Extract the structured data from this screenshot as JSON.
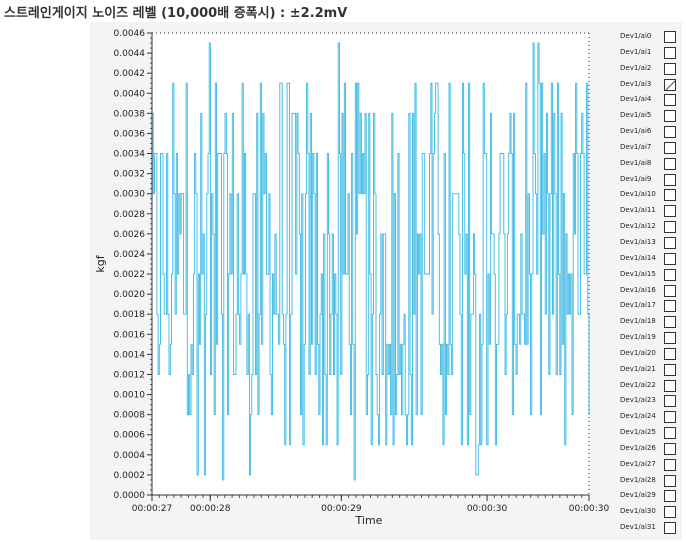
{
  "title": "스트레인게이지 노이즈 레벨 (10,000배 증폭시) : ±2.2mV",
  "chart_data": {
    "type": "line",
    "xlabel": "Time",
    "ylabel": "kgf",
    "ylim": [
      0,
      0.0046
    ],
    "ytick_step": 0.0002,
    "yticks": [
      "0.0000",
      "0.0002",
      "0.0004",
      "0.0006",
      "0.0008",
      "0.0010",
      "0.0012",
      "0.0014",
      "0.0016",
      "0.0018",
      "0.0020",
      "0.0022",
      "0.0024",
      "0.0026",
      "0.0028",
      "0.0030",
      "0.0032",
      "0.0034",
      "0.0036",
      "0.0038",
      "0.0040",
      "0.0042",
      "0.0044",
      "0.0046"
    ],
    "x_tick_labels": [
      {
        "label": "00:00:27",
        "t": 27.0
      },
      {
        "label": "00:00:28",
        "t": 27.4
      },
      {
        "label": "00:00:29",
        "t": 28.3
      },
      {
        "label": "00:00:30",
        "t": 29.3
      },
      {
        "label": "00:00:30",
        "t": 30.0
      }
    ],
    "xlim": [
      27.0,
      30.0
    ],
    "series": [
      {
        "color": "#38b8e4",
        "noise_band": [
          0.0,
          0.0046
        ],
        "typical_band": [
          0.0008,
          0.0038
        ],
        "levels": [
          0.00015,
          0.0002,
          0.0005,
          0.0008,
          0.0012,
          0.0015,
          0.0018,
          0.0022,
          0.0026,
          0.003,
          0.0034,
          0.0038,
          0.0041,
          0.0045
        ]
      }
    ],
    "grid": false
  },
  "legend": {
    "items": [
      {
        "label": "Dev1/ai0",
        "checked": false
      },
      {
        "label": "Dev1/ai1",
        "checked": false
      },
      {
        "label": "Dev1/ai2",
        "checked": false
      },
      {
        "label": "Dev1/ai3",
        "checked": true
      },
      {
        "label": "Dev1/ai4",
        "checked": false
      },
      {
        "label": "Dev1/ai5",
        "checked": false
      },
      {
        "label": "Dev1/ai6",
        "checked": false
      },
      {
        "label": "Dev1/ai7",
        "checked": false
      },
      {
        "label": "Dev1/ai8",
        "checked": false
      },
      {
        "label": "Dev1/ai9",
        "checked": false
      },
      {
        "label": "Dev1/ai10",
        "checked": false
      },
      {
        "label": "Dev1/ai11",
        "checked": false
      },
      {
        "label": "Dev1/ai12",
        "checked": false
      },
      {
        "label": "Dev1/ai13",
        "checked": false
      },
      {
        "label": "Dev1/ai14",
        "checked": false
      },
      {
        "label": "Dev1/ai15",
        "checked": false
      },
      {
        "label": "Dev1/ai16",
        "checked": false
      },
      {
        "label": "Dev1/ai17",
        "checked": false
      },
      {
        "label": "Dev1/ai18",
        "checked": false
      },
      {
        "label": "Dev1/ai19",
        "checked": false
      },
      {
        "label": "Dev1/ai20",
        "checked": false
      },
      {
        "label": "Dev1/ai21",
        "checked": false
      },
      {
        "label": "Dev1/ai22",
        "checked": false
      },
      {
        "label": "Dev1/ai23",
        "checked": false
      },
      {
        "label": "Dev1/ai24",
        "checked": false
      },
      {
        "label": "Dev1/ai25",
        "checked": false
      },
      {
        "label": "Dev1/ai26",
        "checked": false
      },
      {
        "label": "Dev1/ai27",
        "checked": false
      },
      {
        "label": "Dev1/ai28",
        "checked": false
      },
      {
        "label": "Dev1/ai29",
        "checked": false
      },
      {
        "label": "Dev1/ai30",
        "checked": false
      },
      {
        "label": "Dev1/ai31",
        "checked": false
      }
    ]
  }
}
